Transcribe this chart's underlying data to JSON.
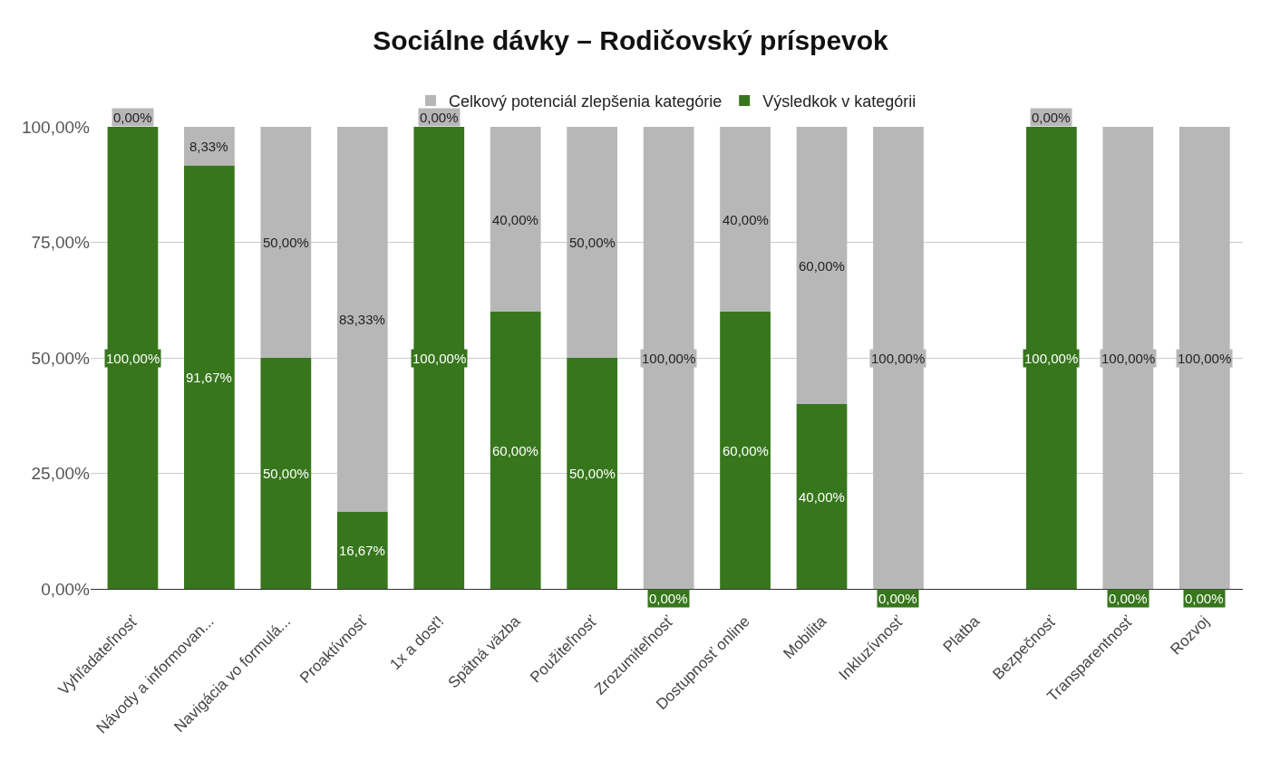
{
  "chart_data": {
    "type": "bar",
    "stacked": true,
    "title": "Sociálne dávky – Rodičovský príspevok",
    "categories": [
      "Vyhľadateľnosť",
      "Návody a informovan...",
      "Navigácia vo formulá...",
      "Proaktívnosť",
      "1x a dosť!",
      "Spätná väzba",
      "Použiteľnosť",
      "Zrozumiteľnosť",
      "Dostupnosť online",
      "Mobilita",
      "Inkluzívnosť",
      "Platba",
      "Bezpečnosť",
      "Transparentnosť",
      "Rozvoj"
    ],
    "series": [
      {
        "name": "Výsledkok v kategórii",
        "color": "#38761d",
        "values": [
          100,
          91.67,
          50,
          16.67,
          100,
          60,
          50,
          0,
          60,
          40,
          0,
          null,
          100,
          0,
          0
        ],
        "value_labels": [
          "100,00%",
          "91,67%",
          "50,00%",
          "16,67%",
          "100,00%",
          "60,00%",
          "50,00%",
          "0,00%",
          "60,00%",
          "40,00%",
          "0,00%",
          null,
          "100,00%",
          "0,00%",
          "0,00%"
        ]
      },
      {
        "name": "Celkový potenciál zlepšenia kategórie",
        "color": "#b7b7b7",
        "values": [
          0,
          8.33,
          50,
          83.33,
          0,
          40,
          50,
          100,
          40,
          60,
          100,
          null,
          0,
          100,
          100
        ],
        "value_labels": [
          "0,00%",
          "8,33%",
          "50,00%",
          "83,33%",
          "0,00%",
          "40,00%",
          "50,00%",
          "100,00%",
          "40,00%",
          "60,00%",
          "100,00%",
          null,
          "0,00%",
          "100,00%",
          "100,00%"
        ]
      }
    ],
    "ylim": [
      0,
      100
    ],
    "yticks": [
      {
        "value": 0,
        "label": "0,00%"
      },
      {
        "value": 25,
        "label": "25,00%"
      },
      {
        "value": 50,
        "label": "50,00%"
      },
      {
        "value": 75,
        "label": "75,00%"
      },
      {
        "value": 100,
        "label": "100,00%"
      }
    ],
    "grid": "y",
    "legend": "top"
  }
}
